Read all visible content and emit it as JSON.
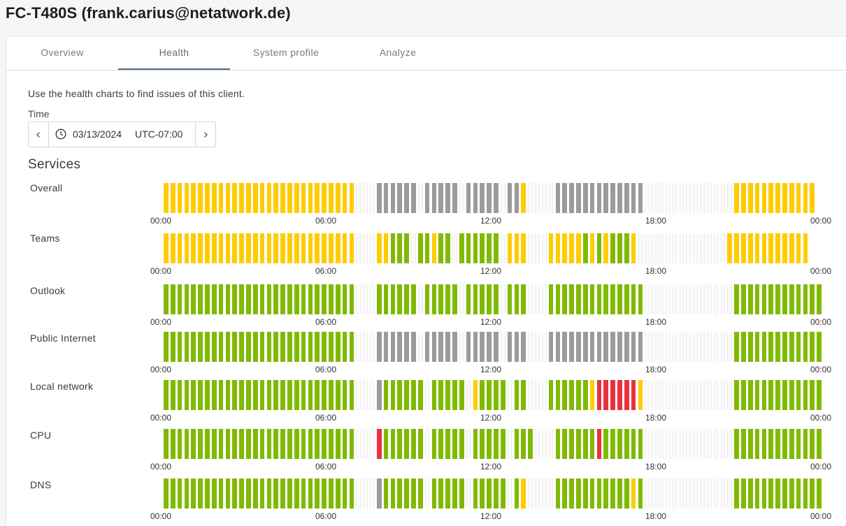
{
  "header": {
    "title": "FC-T480S (frank.carius@netatwork.de)"
  },
  "tabs": [
    {
      "label": "Overview",
      "active": false
    },
    {
      "label": "Health",
      "active": true
    },
    {
      "label": "System profile",
      "active": false
    },
    {
      "label": "Analyze",
      "active": false
    }
  ],
  "intro": "Use the health charts to find issues of this client.",
  "time": {
    "label": "Time",
    "date": "03/13/2024",
    "timezone": "UTC-07:00",
    "prev_icon": "chevron-left-icon",
    "next_icon": "chevron-right-icon",
    "clock_icon": "clock-icon"
  },
  "services_heading": "Services",
  "legend_colors": {
    "y": "#ffcc00",
    "g": "#7fba00",
    "x": "#9b9b9b",
    "r": "#e8313f",
    "e": "#f0f0f0"
  },
  "chart_data": {
    "type": "heatmap",
    "x_ticks": [
      "00:00",
      "06:00",
      "12:00",
      "18:00",
      "00:00"
    ],
    "bins_per_day": 96,
    "status_codes": {
      "y": "warning",
      "g": "healthy",
      "x": "unknown",
      "r": "critical",
      "e": "no data"
    },
    "series": [
      {
        "name": "Overall",
        "status": "yyyyyyyyyyyyyyyyyyyyyyyyyyyyeeexxxxxxexxxxxexxxxxexxyeeeexxxxxxxxxxxxxeeeeeeeeeeeeeyyyyyyyyyyyy"
      },
      {
        "name": "Teams",
        "status": "yyyyyyyyyyyyyyyyyyyyyyyyyyyyeeeyygggeggyggeggggggeyyyeeeyyyyygygygggyeeeeeeeeeeeeeyyyyyyyyyyyy"
      },
      {
        "name": "Outlook",
        "status": "ggggggggggggggggggggggggggggeeeggggggegggggegggggegggeeeggggggggggggggeeeeeeeeeeeeeggggggggggggg"
      },
      {
        "name": "Public Internet",
        "status": "ggggggggggggggggggggggggggggeeexxxxxxexxxxxexxxxxexxxeeexxxxxxxxxxxxxxeeeeeeeeeeeeeggggggggggggg"
      },
      {
        "name": "Local network",
        "status": "ggggggggggggggggggggggggggggeeexggggggegggggeyggggeggeeeggggggyrrrrrryeeeeeeeeeeeeeggggggggggggg"
      },
      {
        "name": "CPU",
        "status": "ggggggggggggggggggggggggggggeeerggggggegggggegggggegggeeeggggggrggggggeeeeeeeeeeeeeggggggggggggg"
      },
      {
        "name": "DNS",
        "status": "ggggggggggggggggggggggggggggeeexggggggegggggegggggegyeeeegggggggggggygeeeeeeeeeeeeeggggggggggggg"
      }
    ]
  }
}
